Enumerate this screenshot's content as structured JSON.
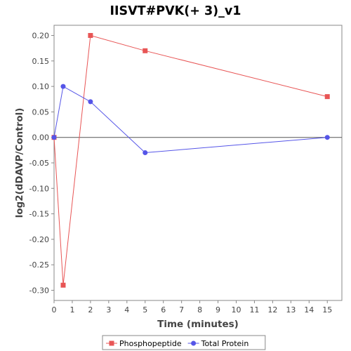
{
  "chart_data": {
    "type": "line",
    "title": "IISVT#PVK(+ 3)_v1",
    "xlabel": "Time (minutes)",
    "ylabel": "log2(dDAVP/Control)",
    "xlim": [
      0,
      15.8
    ],
    "ylim": [
      -0.32,
      0.22
    ],
    "x_ticks": [
      0,
      1,
      2,
      3,
      4,
      5,
      6,
      7,
      8,
      9,
      10,
      11,
      12,
      13,
      14,
      15
    ],
    "y_ticks": [
      0.2,
      0.15,
      0.1,
      0.05,
      0.0,
      -0.05,
      -0.1,
      -0.15,
      -0.2,
      -0.25,
      -0.3
    ],
    "y_tick_labels": [
      "0.20",
      "0.15",
      "0.10",
      "0.05",
      "0.00",
      "-0.05",
      "-0.10",
      "-0.15",
      "-0.20",
      "-0.25",
      "-0.30"
    ],
    "zero_line": true,
    "grid": false,
    "legend_position": "bottom",
    "series": [
      {
        "name": "Phosphopeptide",
        "color": "#e85555",
        "marker": "square",
        "x": [
          0,
          0.5,
          2,
          5,
          15
        ],
        "y": [
          0.0,
          -0.29,
          0.2,
          0.17,
          0.08
        ]
      },
      {
        "name": "Total Protein",
        "color": "#5555e8",
        "marker": "circle",
        "x": [
          0,
          0.5,
          2,
          5,
          15
        ],
        "y": [
          0.0,
          0.1,
          0.07,
          -0.03,
          0.0
        ]
      }
    ]
  }
}
